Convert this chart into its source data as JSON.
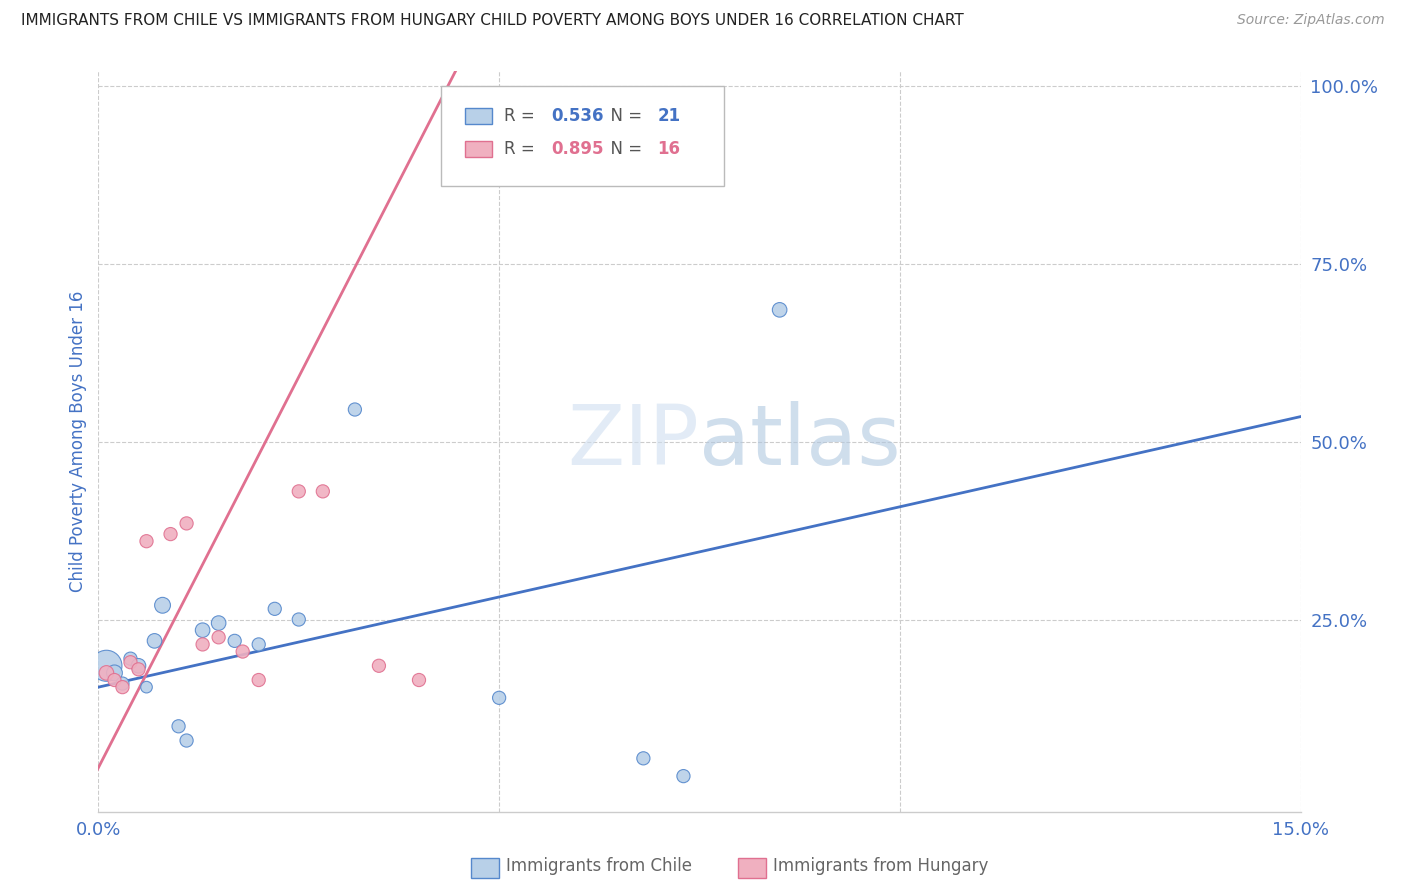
{
  "title": "IMMIGRANTS FROM CHILE VS IMMIGRANTS FROM HUNGARY CHILD POVERTY AMONG BOYS UNDER 16 CORRELATION CHART",
  "source": "Source: ZipAtlas.com",
  "ylabel": "Child Poverty Among Boys Under 16",
  "xlim": [
    0.0,
    0.15
  ],
  "ylim": [
    -0.02,
    1.02
  ],
  "yticks_right": [
    1.0,
    0.75,
    0.5,
    0.25
  ],
  "ytick_labels_right": [
    "100.0%",
    "75.0%",
    "50.0%",
    "25.0%"
  ],
  "chile_color": "#b8d0e8",
  "hungary_color": "#f0b0c0",
  "chile_edge_color": "#5588cc",
  "hungary_edge_color": "#e07090",
  "chile_line_color": "#4472c4",
  "hungary_line_color": "#e07090",
  "chile_R": "0.536",
  "chile_N": "21",
  "hungary_R": "0.895",
  "hungary_N": "16",
  "watermark": "ZIPatlas",
  "chile_scatter_x": [
    0.001,
    0.002,
    0.003,
    0.004,
    0.005,
    0.006,
    0.007,
    0.008,
    0.01,
    0.011,
    0.013,
    0.015,
    0.017,
    0.02,
    0.022,
    0.025,
    0.032,
    0.05,
    0.068,
    0.073,
    0.085
  ],
  "chile_scatter_y": [
    0.185,
    0.175,
    0.16,
    0.195,
    0.185,
    0.155,
    0.22,
    0.27,
    0.1,
    0.08,
    0.235,
    0.245,
    0.22,
    0.215,
    0.265,
    0.25,
    0.545,
    0.14,
    0.055,
    0.03,
    0.685
  ],
  "chile_scatter_size": [
    500,
    130,
    90,
    90,
    110,
    70,
    110,
    130,
    90,
    90,
    110,
    110,
    90,
    90,
    90,
    90,
    90,
    90,
    90,
    90,
    110
  ],
  "hungary_scatter_x": [
    0.001,
    0.002,
    0.003,
    0.004,
    0.005,
    0.006,
    0.009,
    0.011,
    0.013,
    0.015,
    0.018,
    0.02,
    0.025,
    0.028,
    0.035,
    0.04
  ],
  "hungary_scatter_y": [
    0.175,
    0.165,
    0.155,
    0.19,
    0.18,
    0.36,
    0.37,
    0.385,
    0.215,
    0.225,
    0.205,
    0.165,
    0.43,
    0.43,
    0.185,
    0.165
  ],
  "hungary_scatter_size": [
    110,
    90,
    90,
    90,
    90,
    90,
    90,
    90,
    90,
    90,
    90,
    90,
    90,
    90,
    90,
    90
  ],
  "chile_line_x": [
    0.0,
    0.15
  ],
  "chile_line_y": [
    0.155,
    0.535
  ],
  "hungary_line_x": [
    -0.001,
    0.045
  ],
  "hungary_line_y": [
    0.02,
    1.03
  ],
  "background_color": "#ffffff",
  "grid_color": "#cccccc",
  "title_color": "#222222",
  "label_color": "#4472c4",
  "legend_r_color_chile": "#4472c4",
  "legend_n_color_chile": "#4472c4",
  "legend_r_color_hungary": "#e07090",
  "legend_n_color_hungary": "#e07090"
}
